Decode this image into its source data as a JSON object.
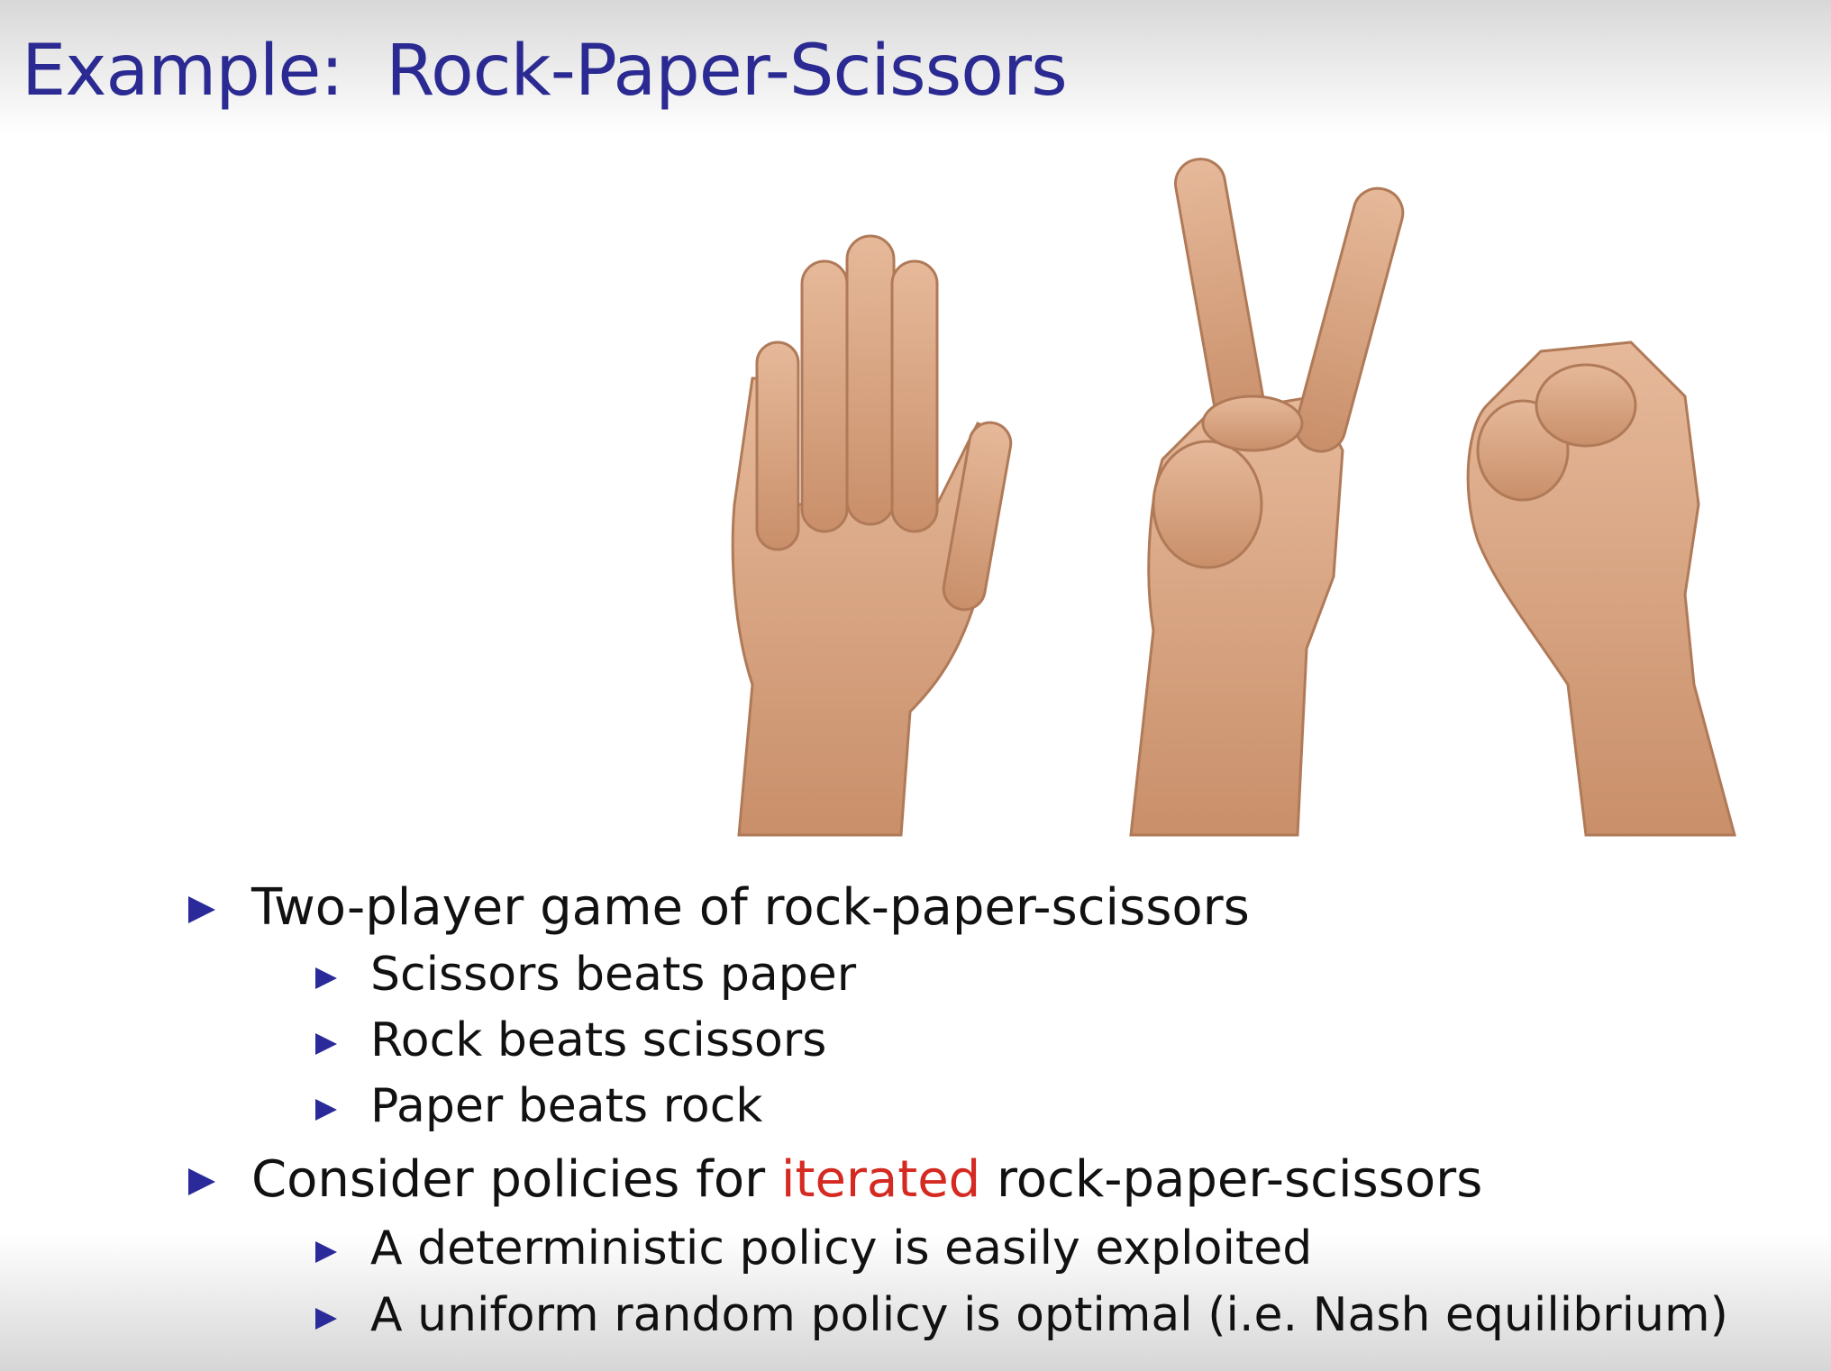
{
  "title": "Example:  Rock-Paper-Scissors",
  "bullets": [
    {
      "segments": [
        {
          "text": "Two-player game of rock-paper-scissors"
        }
      ],
      "sub": [
        "Scissors beats paper",
        "Rock beats scissors",
        "Paper beats rock"
      ]
    },
    {
      "segments": [
        {
          "text": "Consider policies for "
        },
        {
          "text": "iterated",
          "color": "#d42a22"
        },
        {
          "text": " rock-paper-scissors"
        }
      ],
      "sub": [
        "A deterministic policy is easily exploited",
        "A uniform random policy is optimal (i.e. Nash equilibrium)"
      ]
    }
  ]
}
